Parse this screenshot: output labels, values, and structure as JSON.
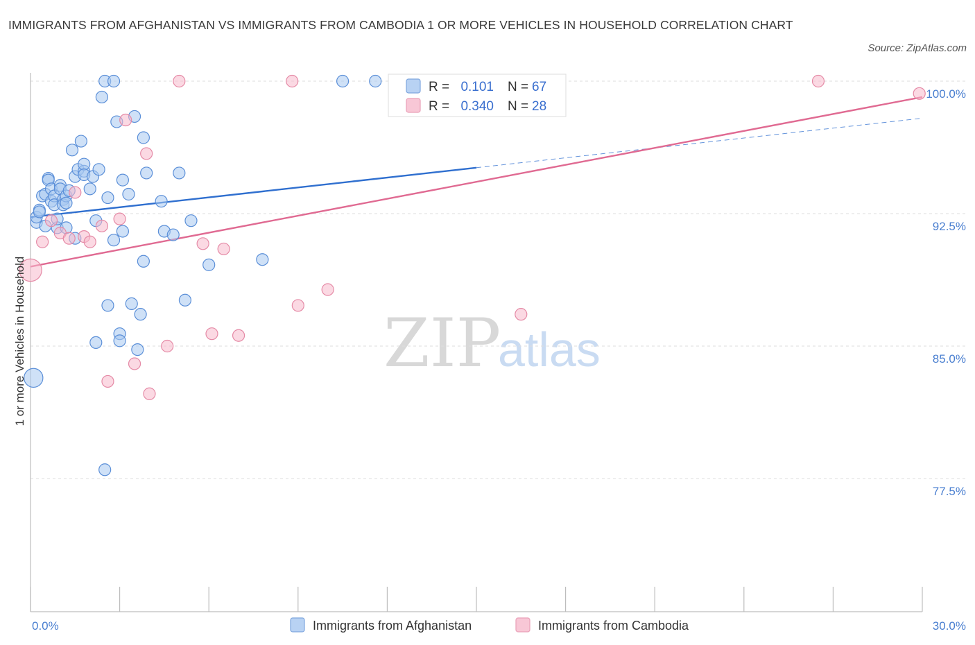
{
  "title": "IMMIGRANTS FROM AFGHANISTAN VS IMMIGRANTS FROM CAMBODIA 1 OR MORE VEHICLES IN HOUSEHOLD CORRELATION CHART",
  "source": "Source: ZipAtlas.com",
  "watermark": {
    "zip": "ZIP",
    "atlas": "atlas"
  },
  "legend": {
    "r_label": "R =",
    "n_label": "N =",
    "afghanistan": {
      "r": "0.101",
      "n": "67"
    },
    "cambodia": {
      "r": "0.340",
      "n": "28"
    }
  },
  "bottom_legend": {
    "afghanistan": "Immigrants from Afghanistan",
    "cambodia": "Immigrants from Cambodia"
  },
  "colors": {
    "afghanistan_fill": "#a8c8f0",
    "afghanistan_stroke": "#5b8fd8",
    "afghanistan_line": "#2f6fcf",
    "cambodia_fill": "#f7b9cc",
    "cambodia_stroke": "#e58aa6",
    "cambodia_line": "#e06a92",
    "tick": "#4a7fd0"
  },
  "chart_data": {
    "type": "scatter",
    "title": "IMMIGRANTS FROM AFGHANISTAN VS IMMIGRANTS FROM CAMBODIA 1 OR MORE VEHICLES IN HOUSEHOLD CORRELATION CHART",
    "xlabel": "",
    "ylabel": "1 or more Vehicles in Household",
    "xlim": [
      0.0,
      30.0
    ],
    "ylim": [
      70.0,
      100.5
    ],
    "x_tick_labels": [
      "0.0%",
      "30.0%"
    ],
    "y_ticks": [
      77.5,
      85.0,
      92.5,
      100.0
    ],
    "y_tick_labels": [
      "77.5%",
      "85.0%",
      "92.5%",
      "100.0%"
    ],
    "grid": true,
    "legend_position": "top-center",
    "series": [
      {
        "name": "Immigrants from Afghanistan",
        "points": [
          [
            0.1,
            83.2,
            1.6
          ],
          [
            0.2,
            92.0,
            1
          ],
          [
            0.2,
            92.3,
            1
          ],
          [
            0.3,
            92.7,
            1
          ],
          [
            0.3,
            92.6,
            1
          ],
          [
            0.4,
            93.5,
            1
          ],
          [
            0.5,
            93.6,
            1
          ],
          [
            0.5,
            91.8,
            1
          ],
          [
            0.6,
            94.5,
            1
          ],
          [
            0.6,
            94.4,
            1
          ],
          [
            0.7,
            93.9,
            1
          ],
          [
            0.7,
            93.2,
            1
          ],
          [
            0.8,
            93.5,
            1
          ],
          [
            0.8,
            93.0,
            1
          ],
          [
            0.9,
            91.7,
            1
          ],
          [
            0.9,
            92.2,
            1
          ],
          [
            1.0,
            94.1,
            1
          ],
          [
            1.0,
            93.9,
            1
          ],
          [
            1.1,
            93.3,
            1
          ],
          [
            1.1,
            93.0,
            1
          ],
          [
            1.2,
            93.5,
            1
          ],
          [
            1.2,
            91.7,
            1
          ],
          [
            1.2,
            93.1,
            1
          ],
          [
            1.3,
            93.8,
            1
          ],
          [
            1.4,
            96.1,
            1
          ],
          [
            1.5,
            91.1,
            1
          ],
          [
            1.5,
            94.6,
            1
          ],
          [
            1.6,
            95.0,
            1
          ],
          [
            1.7,
            96.6,
            1
          ],
          [
            1.8,
            94.9,
            1
          ],
          [
            1.8,
            95.3,
            1
          ],
          [
            1.8,
            94.7,
            1
          ],
          [
            2.0,
            93.9,
            1
          ],
          [
            2.1,
            94.6,
            1
          ],
          [
            2.2,
            92.1,
            1
          ],
          [
            2.3,
            95.0,
            1
          ],
          [
            2.2,
            85.2,
            1
          ],
          [
            2.4,
            99.1,
            1
          ],
          [
            2.5,
            100.0,
            1
          ],
          [
            2.5,
            78.0,
            1
          ],
          [
            2.6,
            93.4,
            1
          ],
          [
            2.6,
            87.3,
            1
          ],
          [
            2.8,
            100.0,
            1
          ],
          [
            2.8,
            91.0,
            1
          ],
          [
            2.9,
            97.7,
            1
          ],
          [
            3.0,
            85.7,
            1
          ],
          [
            3.0,
            85.3,
            1
          ],
          [
            3.1,
            91.5,
            1
          ],
          [
            3.1,
            94.4,
            1
          ],
          [
            3.3,
            93.6,
            1
          ],
          [
            3.4,
            87.4,
            1
          ],
          [
            3.5,
            98.0,
            1
          ],
          [
            3.6,
            84.8,
            1
          ],
          [
            3.7,
            86.8,
            1
          ],
          [
            3.8,
            96.8,
            1
          ],
          [
            3.8,
            89.8,
            1
          ],
          [
            3.9,
            94.8,
            1
          ],
          [
            4.4,
            93.2,
            1
          ],
          [
            4.5,
            91.5,
            1
          ],
          [
            4.8,
            91.3,
            1
          ],
          [
            5.0,
            94.8,
            1
          ],
          [
            5.2,
            87.6,
            1
          ],
          [
            5.4,
            92.1,
            1
          ],
          [
            6.0,
            89.6,
            1
          ],
          [
            7.8,
            89.9,
            1
          ],
          [
            10.5,
            100.0,
            1
          ],
          [
            11.6,
            100.0,
            1
          ]
        ]
      },
      {
        "name": "Immigrants from Cambodia",
        "points": [
          [
            0.0,
            89.3,
            1.9
          ],
          [
            0.4,
            90.9,
            1
          ],
          [
            0.7,
            92.1,
            1
          ],
          [
            1.0,
            91.4,
            1
          ],
          [
            1.3,
            91.1,
            1
          ],
          [
            1.5,
            93.7,
            1
          ],
          [
            1.8,
            91.2,
            1
          ],
          [
            2.0,
            90.9,
            1
          ],
          [
            2.4,
            91.8,
            1
          ],
          [
            2.6,
            83.0,
            1
          ],
          [
            3.0,
            92.2,
            1
          ],
          [
            3.2,
            97.8,
            1
          ],
          [
            3.5,
            84.0,
            1
          ],
          [
            3.9,
            95.9,
            1
          ],
          [
            4.0,
            82.3,
            1
          ],
          [
            4.6,
            85.0,
            1
          ],
          [
            5.0,
            100.0,
            1
          ],
          [
            5.8,
            90.8,
            1
          ],
          [
            6.1,
            85.7,
            1
          ],
          [
            6.5,
            90.5,
            1
          ],
          [
            7.0,
            85.6,
            1
          ],
          [
            8.8,
            100.0,
            1
          ],
          [
            9.0,
            87.3,
            1
          ],
          [
            10.0,
            88.2,
            1
          ],
          [
            12.8,
            100.0,
            1
          ],
          [
            16.5,
            86.8,
            1
          ],
          [
            26.5,
            100.0,
            1
          ],
          [
            29.9,
            99.3,
            1
          ]
        ]
      }
    ],
    "trend_lines": [
      {
        "series": "Immigrants from Afghanistan",
        "solid": [
          [
            0.0,
            92.3
          ],
          [
            15.0,
            95.1
          ]
        ],
        "dashed": [
          [
            15.0,
            95.1
          ],
          [
            30.0,
            97.9
          ]
        ]
      },
      {
        "series": "Immigrants from Cambodia",
        "solid": [
          [
            0.0,
            89.5
          ],
          [
            30.0,
            99.1
          ]
        ]
      }
    ]
  }
}
